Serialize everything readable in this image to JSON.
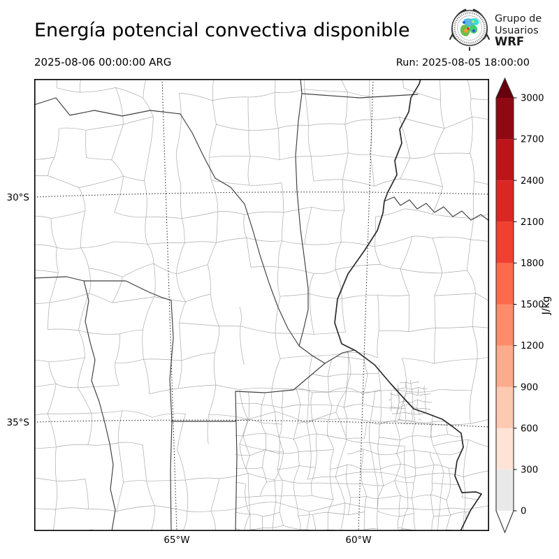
{
  "header": {
    "title": "Energía potencial convectiva disponible",
    "valid_time": "2025-08-06 00:00:00 ARG",
    "run_label": "Run: 2025-08-05 18:00:00",
    "logo": {
      "line1": "Grupo de",
      "line2": "Usuarios",
      "line3": "WRF"
    }
  },
  "map": {
    "lat_labels": [
      "30°S",
      "35°S"
    ],
    "lon_labels": [
      "65°W",
      "60°W"
    ]
  },
  "colorbar": {
    "unit": "J/kg",
    "ticks": [
      0,
      300,
      600,
      900,
      1200,
      1500,
      1800,
      2100,
      2400,
      2700,
      3000
    ],
    "colors": [
      "#e9e9e9",
      "#fee3d6",
      "#fcc9b1",
      "#fcab8d",
      "#fc8c6c",
      "#fb6b4b",
      "#f0402f",
      "#da2723",
      "#bb151a",
      "#8e0912"
    ],
    "over_color": "#67000d",
    "under_color": "#ffffff"
  }
}
